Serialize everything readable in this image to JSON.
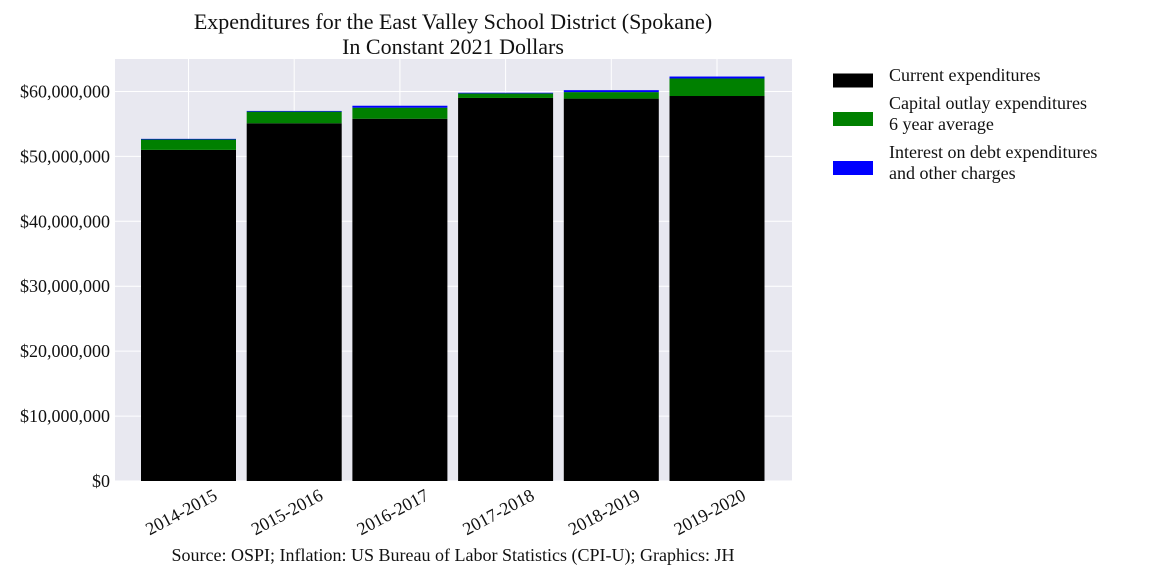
{
  "chart_data": {
    "type": "bar",
    "stacked": true,
    "title": "Expenditures for the East Valley School District (Spokane)",
    "subtitle": "In Constant 2021 Dollars",
    "xlabel": "",
    "ylabel": "",
    "categories": [
      "2014-2015",
      "2015-2016",
      "2016-2017",
      "2017-2018",
      "2018-2019",
      "2019-2020"
    ],
    "series": [
      {
        "name": "Current expenditures",
        "color": "#000000",
        "values": [
          51000000,
          55100000,
          55800000,
          59000000,
          58900000,
          59300000
        ]
      },
      {
        "name_lines": [
          "Capital outlay expenditures",
          "6 year average"
        ],
        "color": "#008000",
        "values": [
          1600000,
          1800000,
          1700000,
          700000,
          1000000,
          2700000
        ]
      },
      {
        "name_lines": [
          "Interest on debt expenditures",
          "and other charges"
        ],
        "color": "#0000ff",
        "values": [
          100000,
          100000,
          300000,
          100000,
          300000,
          300000
        ]
      }
    ],
    "ylim": [
      0,
      65000000
    ],
    "yticks": [
      0,
      10000000,
      20000000,
      30000000,
      40000000,
      50000000,
      60000000
    ],
    "ytick_labels": [
      "$0",
      "$10,000,000",
      "$20,000,000",
      "$30,000,000",
      "$40,000,000",
      "$50,000,000",
      "$60,000,000"
    ],
    "grid": true,
    "legend_position": "outside-right-top",
    "plot_background": "#e8e8f0",
    "grid_color": "#ffffff"
  },
  "footer": "Source: OSPI; Inflation: US Bureau of Labor Statistics (CPI-U); Graphics: JH"
}
